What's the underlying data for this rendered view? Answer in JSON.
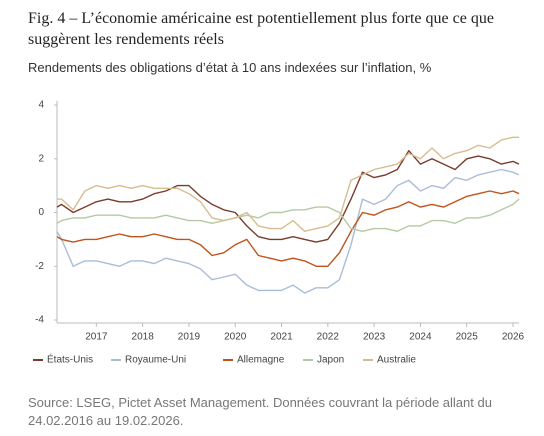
{
  "chart_data": {
    "type": "line",
    "title": "Fig. 4 – L’économie américaine est potentiellement plus forte que ce que suggèrent les rendements réels",
    "subtitle": "Rendements des obligations d’état à 10 ans indexées sur l’inflation, %",
    "source": "Source: LSEG, Pictet Asset Management. Données couvrant la période allant du 24.02.2016 au 19.02.2026.",
    "x": [
      2016.15,
      2016.25,
      2016.5,
      2016.75,
      2017,
      2017.25,
      2017.5,
      2017.75,
      2018,
      2018.25,
      2018.5,
      2018.75,
      2019,
      2019.25,
      2019.5,
      2019.75,
      2020,
      2020.25,
      2020.5,
      2020.75,
      2021,
      2021.25,
      2021.5,
      2021.75,
      2022,
      2022.25,
      2022.5,
      2022.75,
      2023,
      2023.25,
      2023.5,
      2023.75,
      2024,
      2024.25,
      2024.5,
      2024.75,
      2025,
      2025.25,
      2025.5,
      2025.75,
      2026,
      2026.13
    ],
    "xlim": [
      2016.15,
      2026.13
    ],
    "xticks": [
      2017,
      2018,
      2019,
      2020,
      2021,
      2022,
      2023,
      2024,
      2025,
      2026
    ],
    "ylim": [
      -4,
      4
    ],
    "yticks": [
      -4,
      -2,
      0,
      2,
      4
    ],
    "grid": false,
    "series": [
      {
        "name": "États-Unis",
        "color": "#7b3b2c",
        "values": [
          0.2,
          0.3,
          0.0,
          0.2,
          0.4,
          0.5,
          0.4,
          0.4,
          0.5,
          0.7,
          0.8,
          1.0,
          1.0,
          0.6,
          0.3,
          0.1,
          0.0,
          -0.5,
          -0.9,
          -1.0,
          -1.0,
          -0.9,
          -1.0,
          -1.1,
          -1.0,
          -0.4,
          0.5,
          1.5,
          1.3,
          1.4,
          1.6,
          2.3,
          1.8,
          2.0,
          1.8,
          1.6,
          2.0,
          2.1,
          2.0,
          1.8,
          1.9,
          1.8
        ]
      },
      {
        "name": "Royaume-Uni",
        "color": "#a9bdd6",
        "values": [
          -0.7,
          -1.0,
          -2.0,
          -1.8,
          -1.8,
          -1.9,
          -2.0,
          -1.8,
          -1.8,
          -1.9,
          -1.7,
          -1.8,
          -1.9,
          -2.1,
          -2.5,
          -2.4,
          -2.3,
          -2.7,
          -2.9,
          -2.9,
          -2.9,
          -2.7,
          -3.0,
          -2.8,
          -2.8,
          -2.5,
          -1.2,
          0.5,
          0.3,
          0.5,
          1.0,
          1.2,
          0.8,
          1.0,
          0.9,
          1.3,
          1.2,
          1.4,
          1.5,
          1.6,
          1.5,
          1.4
        ]
      },
      {
        "name": "Allemagne",
        "color": "#c0531a",
        "values": [
          -0.9,
          -1.0,
          -1.1,
          -1.0,
          -1.0,
          -0.9,
          -0.8,
          -0.9,
          -0.9,
          -0.8,
          -0.9,
          -1.0,
          -1.0,
          -1.2,
          -1.6,
          -1.5,
          -1.2,
          -1.0,
          -1.6,
          -1.7,
          -1.8,
          -1.7,
          -1.8,
          -2.0,
          -2.0,
          -1.5,
          -0.7,
          0.0,
          -0.1,
          0.1,
          0.2,
          0.4,
          0.2,
          0.3,
          0.2,
          0.4,
          0.6,
          0.7,
          0.8,
          0.7,
          0.8,
          0.7
        ]
      },
      {
        "name": "Japon",
        "color": "#b5c9a5",
        "values": [
          -0.4,
          -0.3,
          -0.2,
          -0.2,
          -0.1,
          -0.1,
          -0.1,
          -0.2,
          -0.2,
          -0.2,
          -0.1,
          -0.2,
          -0.3,
          -0.3,
          -0.4,
          -0.3,
          -0.2,
          -0.1,
          -0.2,
          0.0,
          0.0,
          0.1,
          0.1,
          0.2,
          0.2,
          0.0,
          -0.6,
          -0.7,
          -0.6,
          -0.6,
          -0.7,
          -0.5,
          -0.5,
          -0.3,
          -0.3,
          -0.4,
          -0.2,
          -0.2,
          -0.1,
          0.1,
          0.3,
          0.5
        ]
      },
      {
        "name": "Australie",
        "color": "#d6bd8e",
        "values": [
          0.5,
          0.5,
          0.1,
          0.8,
          1.0,
          0.9,
          1.0,
          0.9,
          1.0,
          0.9,
          0.9,
          0.9,
          0.7,
          0.4,
          -0.2,
          -0.3,
          -0.2,
          0.0,
          -0.5,
          -0.6,
          -0.6,
          -0.3,
          -0.7,
          -0.6,
          -0.5,
          -0.2,
          1.2,
          1.4,
          1.6,
          1.7,
          1.8,
          2.2,
          2.0,
          2.4,
          2.0,
          2.2,
          2.3,
          2.5,
          2.4,
          2.7,
          2.8,
          2.8
        ]
      }
    ]
  }
}
